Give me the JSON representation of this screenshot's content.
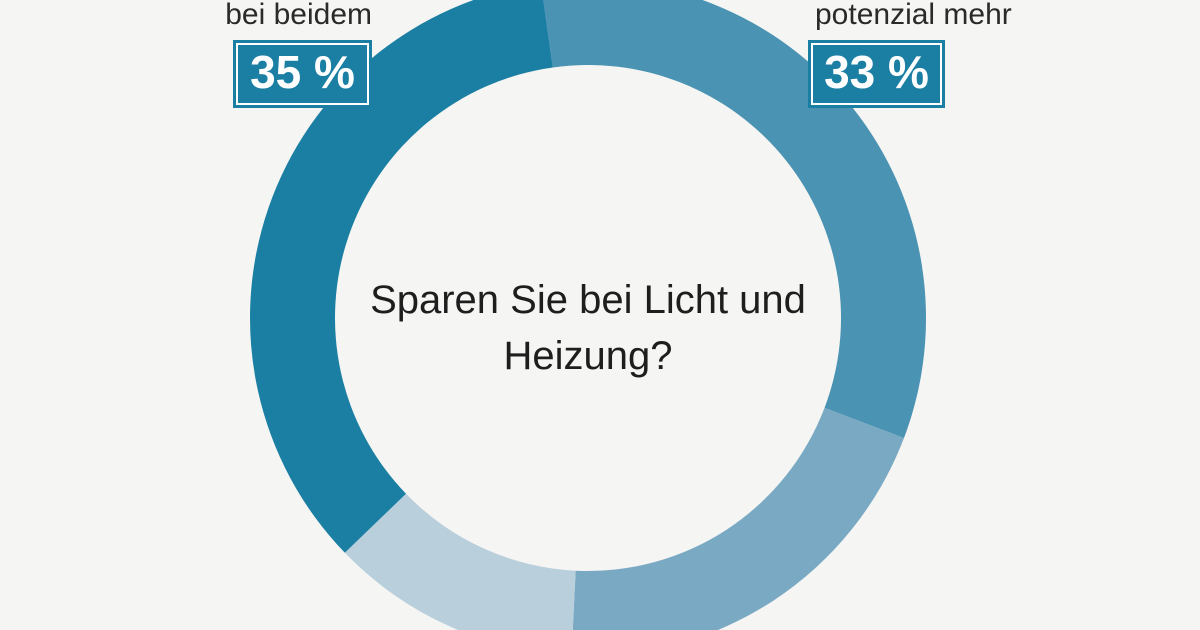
{
  "chart_data": {
    "type": "pie",
    "title": "Sparen Sie bei Licht und Heizung?",
    "categories": [
      "potenzial mehr",
      null,
      null,
      "bei beidem"
    ],
    "values": [
      33,
      20,
      12,
      35
    ],
    "value_labels": [
      "33 %",
      null,
      null,
      "35 %"
    ],
    "colors": [
      "#4a93b3",
      "#7aa9c4",
      "#b9cfdc",
      "#1b7fa3"
    ],
    "donut": true
  }
}
